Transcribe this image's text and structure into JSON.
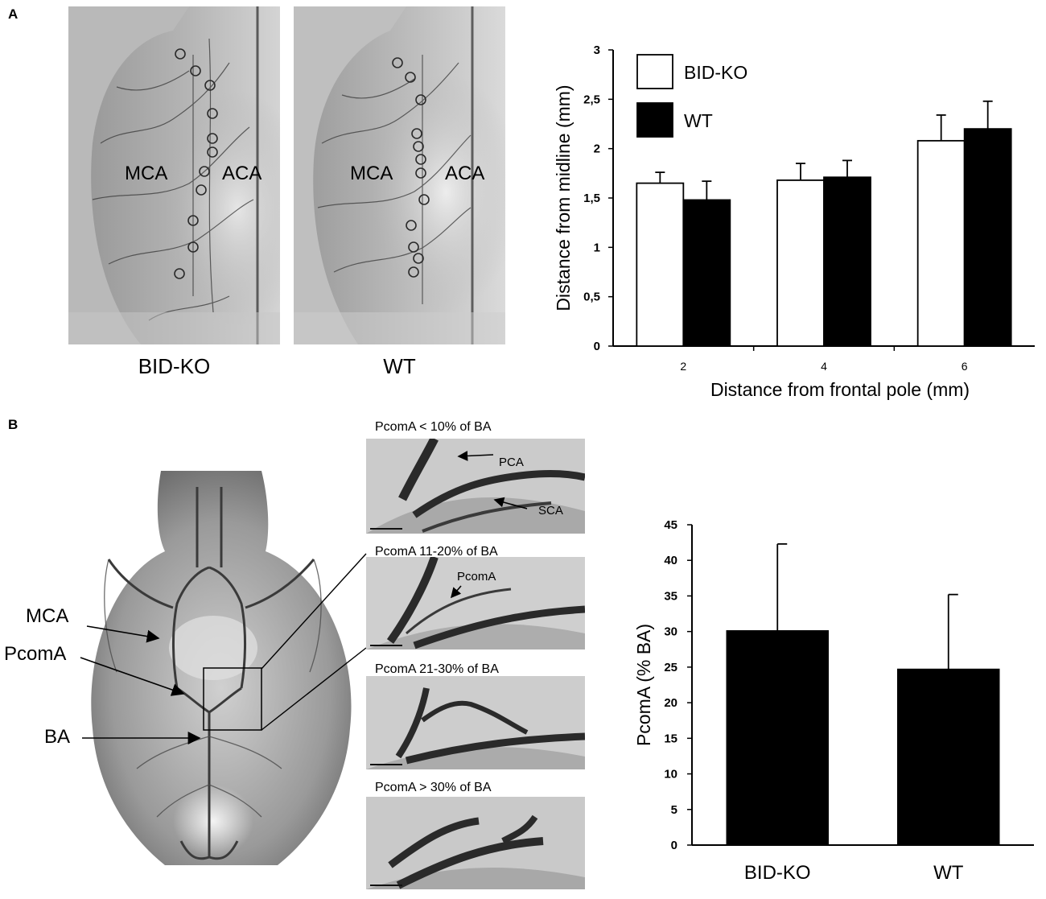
{
  "panel_a": {
    "letter": "A",
    "brain_left": {
      "label_mca": "MCA",
      "label_aca": "ACA",
      "caption": "BID-KO"
    },
    "brain_right": {
      "label_mca": "MCA",
      "label_aca": "ACA",
      "caption": "WT"
    }
  },
  "panel_b": {
    "letter": "B",
    "ventral_brain": {
      "mca": "MCA",
      "pcoma": "PcomA",
      "ba": "BA"
    },
    "thumbnails": [
      {
        "title": "PcomA < 10% of BA",
        "labels": [
          "PCA",
          "SCA"
        ]
      },
      {
        "title": "PcomA 11-20% of BA",
        "labels": [
          "PcomA"
        ]
      },
      {
        "title": "PcomA 21-30% of BA",
        "labels": []
      },
      {
        "title": "PcomA > 30% of BA",
        "labels": []
      }
    ]
  },
  "chart_data": [
    {
      "type": "bar",
      "xlabel": "Distance from frontal pole (mm)",
      "ylabel": "Distance from midline (mm)",
      "categories": [
        "2",
        "4",
        "6"
      ],
      "ylim": [
        0,
        3
      ],
      "yticks": [
        "0",
        "0,5",
        "1",
        "1,5",
        "2",
        "2,5",
        "3"
      ],
      "legend_position": "top-left",
      "series": [
        {
          "name": "BID-KO",
          "values": [
            1.65,
            1.68,
            2.08
          ],
          "errors": [
            0.11,
            0.17,
            0.26
          ],
          "color": "#ffffff"
        },
        {
          "name": "WT",
          "values": [
            1.48,
            1.71,
            2.2
          ],
          "errors": [
            0.19,
            0.17,
            0.28
          ],
          "color": "#000000"
        }
      ]
    },
    {
      "type": "bar",
      "xlabel": "",
      "ylabel": "PcomA (% BA)",
      "categories": [
        "BID-KO",
        "WT"
      ],
      "ylim": [
        0,
        45
      ],
      "yticks": [
        "0",
        "5",
        "10",
        "15",
        "20",
        "25",
        "30",
        "35",
        "40",
        "45"
      ],
      "values": [
        30.1,
        24.7
      ],
      "errors": [
        12.2,
        10.5
      ],
      "color": "#000000"
    }
  ]
}
